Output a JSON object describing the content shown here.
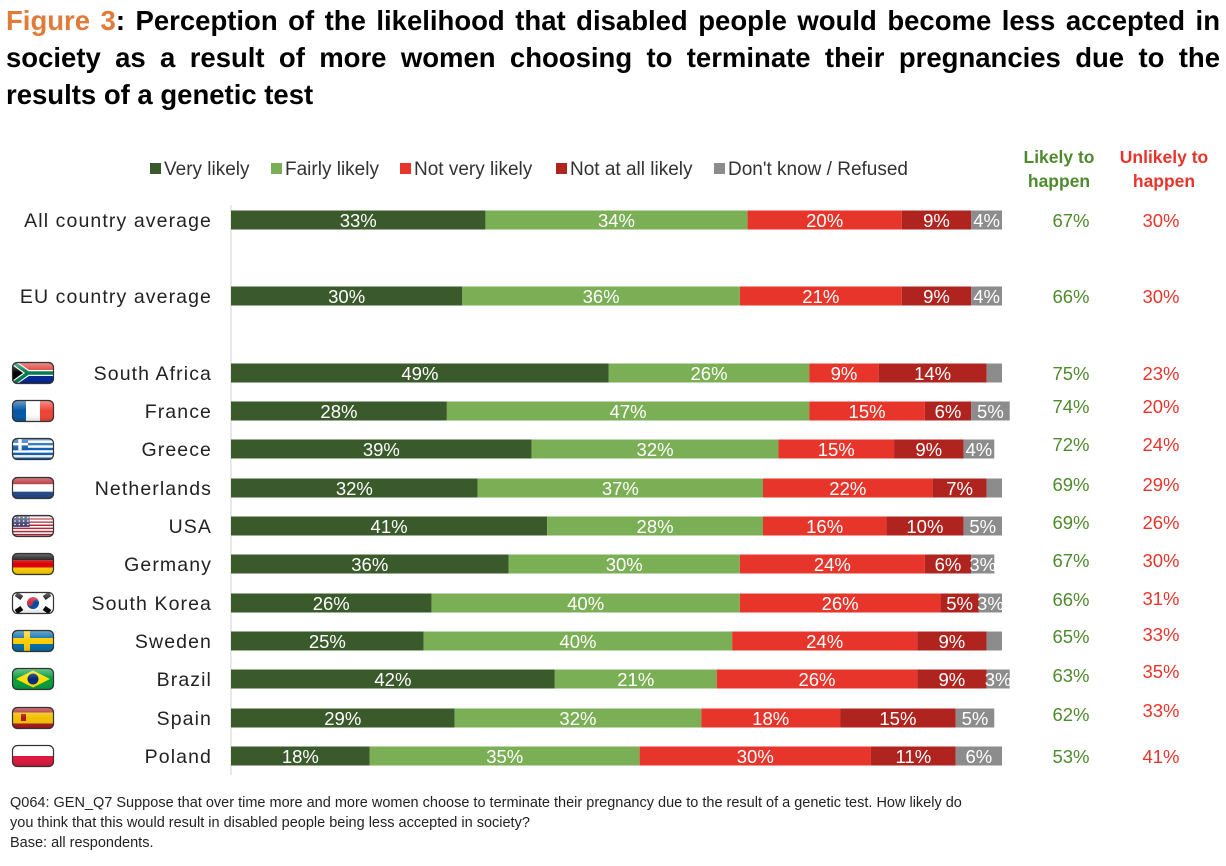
{
  "title": {
    "figure_label": "Figure 3",
    "text": ": Perception of the likelihood that disabled people would become less accepted in society as a result of more women choosing to terminate their pregnancies due to the results of a genetic test"
  },
  "footnote": {
    "line1": "Q064: GEN_Q7 Suppose that over time more and more women choose to terminate their pregnancy due to the result of a genetic test. How likely do",
    "line2": "you think that this would result in disabled people being less accepted in society?",
    "line3": "Base: all respondents."
  },
  "colors": {
    "very_likely": "#3A5A2B",
    "fairly_likely": "#7BAF55",
    "not_very_likely": "#E8352B",
    "not_at_all_likely": "#B0241F",
    "dont_know": "#8C8C8C",
    "likely_text": "#4E8A2E",
    "unlikely_text": "#E8352B",
    "title_accent": "#E07B39"
  },
  "chart_data": {
    "type": "bar",
    "orientation": "horizontal",
    "stacked": true,
    "legend_position": "top",
    "categories": [
      "All country average",
      "EU country average",
      "South Africa",
      "France",
      "Greece",
      "Netherlands",
      "USA",
      "Germany",
      "South Korea",
      "Sweden",
      "Brazil",
      "Spain",
      "Poland"
    ],
    "flags": [
      null,
      null,
      "south-africa-flag",
      "france-flag",
      "greece-flag",
      "netherlands-flag",
      "usa-flag",
      "germany-flag",
      "south-korea-flag",
      "sweden-flag",
      "brazil-flag",
      "spain-flag",
      "poland-flag"
    ],
    "series": [
      {
        "name": "Very likely",
        "color": "#3A5A2B",
        "values": [
          33,
          30,
          49,
          28,
          39,
          32,
          41,
          36,
          26,
          25,
          42,
          29,
          18
        ],
        "labels": [
          "33%",
          "30%",
          "49%",
          "28%",
          "39%",
          "32%",
          "41%",
          "36%",
          "26%",
          "25%",
          "42%",
          "29%",
          "18%"
        ]
      },
      {
        "name": "Fairly likely",
        "color": "#7BAF55",
        "values": [
          34,
          36,
          26,
          47,
          32,
          37,
          28,
          30,
          40,
          40,
          21,
          32,
          35
        ],
        "labels": [
          "34%",
          "36%",
          "26%",
          "47%",
          "32%",
          "37%",
          "28%",
          "30%",
          "40%",
          "40%",
          "21%",
          "32%",
          "35%"
        ]
      },
      {
        "name": "Not very likely",
        "color": "#E8352B",
        "values": [
          20,
          21,
          9,
          15,
          15,
          22,
          16,
          24,
          26,
          24,
          26,
          18,
          30
        ],
        "labels": [
          "20%",
          "21%",
          "9%",
          "15%",
          "15%",
          "22%",
          "16%",
          "24%",
          "26%",
          "24%",
          "26%",
          "18%",
          "30%"
        ]
      },
      {
        "name": "Not at all likely",
        "color": "#B0241F",
        "values": [
          9,
          9,
          14,
          6,
          9,
          7,
          10,
          6,
          5,
          9,
          9,
          15,
          11
        ],
        "labels": [
          "9%",
          "9%",
          "14%",
          "6%",
          "9%",
          "7%",
          "10%",
          "6%",
          "5%",
          "9%",
          "9%",
          "15%",
          "11%"
        ]
      },
      {
        "name": "Don't know / Refused",
        "color": "#8C8C8C",
        "values": [
          4,
          4,
          2,
          5,
          4,
          2,
          5,
          3,
          3,
          2,
          3,
          5,
          6
        ],
        "labels": [
          "4%",
          "4%",
          "",
          "5%",
          "4%",
          "",
          "5%",
          "3%",
          "3%",
          "",
          "3%",
          "5%",
          "6%"
        ]
      }
    ],
    "summary_columns": [
      {
        "header": [
          "Likely to",
          "happen"
        ],
        "color": "#4E8A2E",
        "values": [
          "67%",
          "66%",
          "75%",
          "74%",
          "72%",
          "69%",
          "69%",
          "67%",
          "66%",
          "65%",
          "63%",
          "62%",
          "53%"
        ]
      },
      {
        "header": [
          "Unlikely to",
          "happen"
        ],
        "color": "#E8352B",
        "values": [
          "30%",
          "30%",
          "23%",
          "20%",
          "24%",
          "29%",
          "26%",
          "30%",
          "31%",
          "33%",
          "35%",
          "33%",
          "41%"
        ]
      }
    ],
    "xlim": [
      0,
      100
    ]
  }
}
